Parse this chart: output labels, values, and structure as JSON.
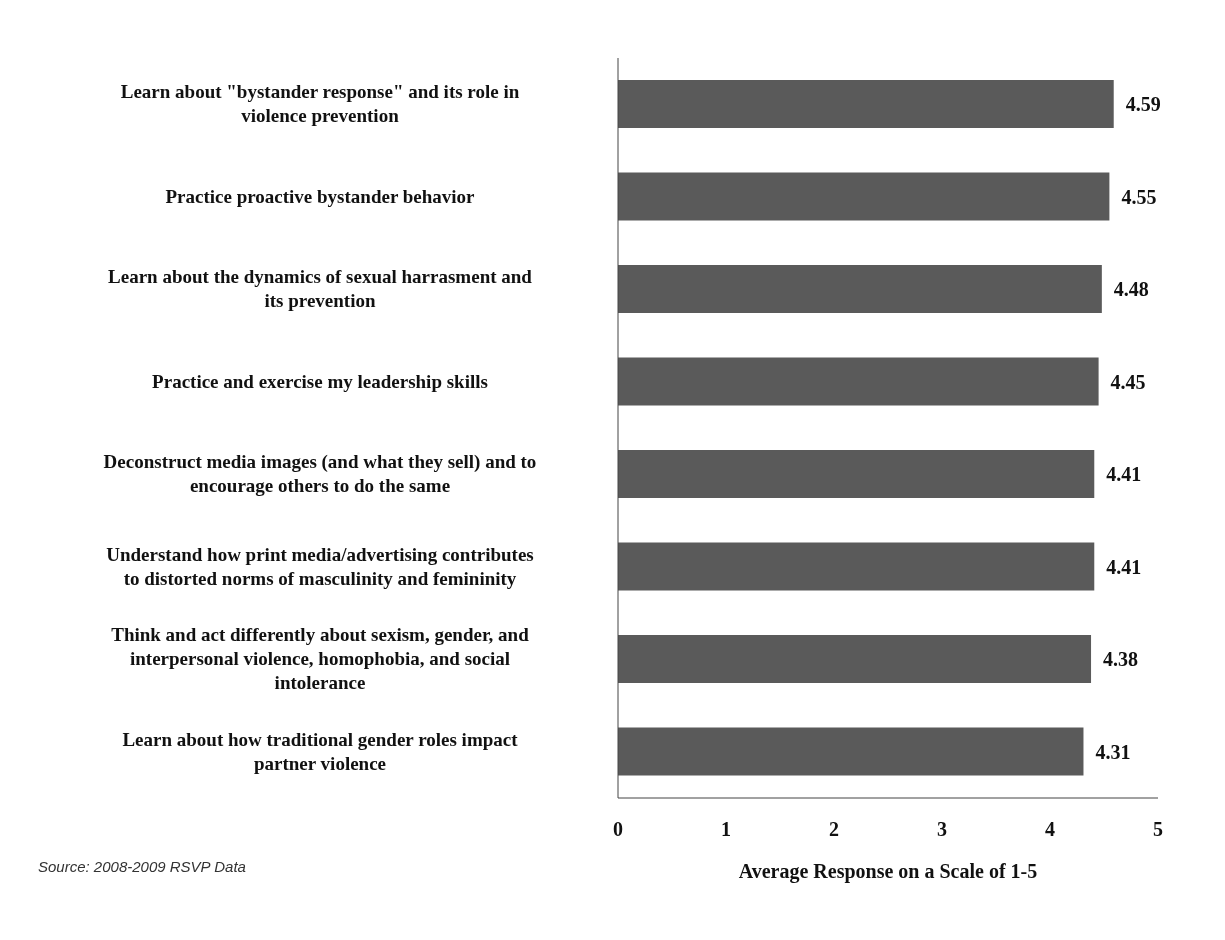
{
  "chart_data": {
    "type": "bar",
    "orientation": "horizontal",
    "categories": [
      "Learn about \"bystander response\" and its role in violence prevention",
      "Practice proactive bystander behavior",
      "Learn about the dynamics of sexual harrasment and its prevention",
      "Practice and exercise my leadership skills",
      "Deconstruct media images (and what they sell) and to encourage others to do the same",
      "Understand how print media/advertising contributes to distorted norms of masculinity and femininity",
      "Think and act differently about sexism, gender, and interpersonal violence, homophobia, and social intolerance",
      "Learn about how traditional gender roles impact partner violence"
    ],
    "values": [
      4.59,
      4.55,
      4.48,
      4.45,
      4.41,
      4.41,
      4.38,
      4.31
    ],
    "color": "#5a5a5a",
    "xlim": [
      0,
      5
    ],
    "xticks": [
      0,
      1,
      2,
      3,
      4,
      5
    ],
    "xlabel": "Average Response on a Scale of 1-5",
    "data_labels": true,
    "annotations": [
      "Source: 2008-2009 RSVP Data"
    ]
  }
}
